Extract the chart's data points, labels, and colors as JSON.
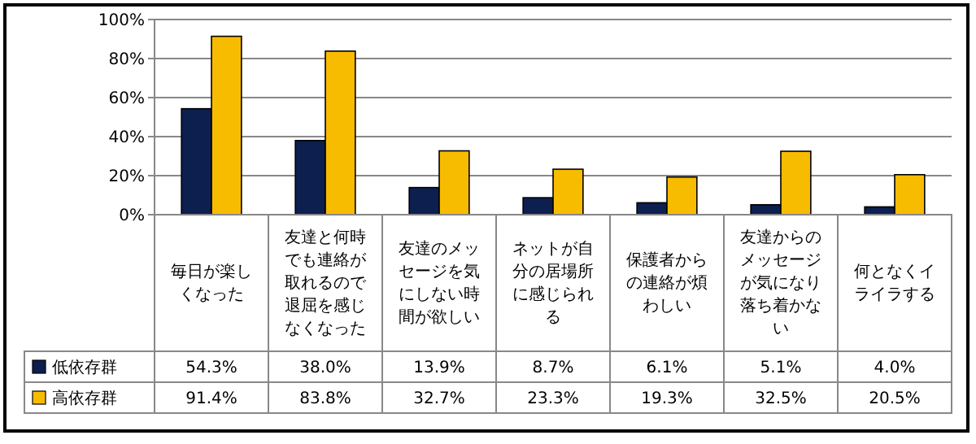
{
  "chart_data": {
    "type": "bar",
    "categories": [
      "毎日が楽しくなった",
      "友達と何時でも連絡が取れるので退屈を感じなくなった",
      "友達のメッセージを気にしない時間が欲しい",
      "ネットが自分の居場所に感じられる",
      "保護者からの連絡が煩わしい",
      "友達からのメッセージが気になり落ち着かない",
      "何となくイライラする"
    ],
    "series": [
      {
        "name": "低依存群",
        "color": "#0d1f4f",
        "values": [
          54.3,
          38.0,
          13.9,
          8.7,
          6.1,
          5.1,
          4.0
        ],
        "value_labels": [
          "54.3%",
          "38.0%",
          "13.9%",
          "8.7%",
          "6.1%",
          "5.1%",
          "4.0%"
        ]
      },
      {
        "name": "高依存群",
        "color": "#f7bb00",
        "values": [
          91.4,
          83.8,
          32.7,
          23.3,
          19.3,
          32.5,
          20.5
        ],
        "value_labels": [
          "91.4%",
          "83.8%",
          "32.7%",
          "23.3%",
          "19.3%",
          "32.5%",
          "20.5%"
        ]
      }
    ],
    "ylim": [
      0,
      100
    ],
    "yticks": [
      {
        "value": 0,
        "label": "0%"
      },
      {
        "value": 20,
        "label": "20%"
      },
      {
        "value": 40,
        "label": "40%"
      },
      {
        "value": 60,
        "label": "60%"
      },
      {
        "value": 80,
        "label": "80%"
      },
      {
        "value": 100,
        "label": "100%"
      }
    ],
    "grid": "y",
    "legend": "bottom"
  }
}
